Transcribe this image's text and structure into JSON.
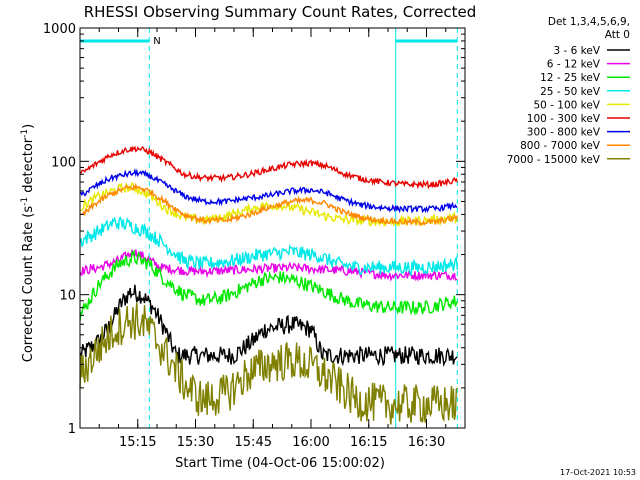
{
  "chart_data": {
    "type": "line",
    "title": "RHESSI Observing Summary Count Rates, Corrected",
    "xlabel": "Start Time (04-Oct-06 15:00:02)",
    "ylabel_prefix": "Corrected Count Rate (s",
    "ylabel_sup1": "-1",
    "ylabel_mid": " detector",
    "ylabel_sup2": "-1",
    "ylabel_suffix": ")",
    "y_scale": "log",
    "ylim": [
      1,
      1000
    ],
    "xlim_minutes": [
      0,
      100
    ],
    "x_ticks": [
      {
        "m": 15,
        "label": "15:15"
      },
      {
        "m": 30,
        "label": "15:30"
      },
      {
        "m": 45,
        "label": "15:45"
      },
      {
        "m": 60,
        "label": "16:00"
      },
      {
        "m": 75,
        "label": "16:15"
      },
      {
        "m": 90,
        "label": "16:30"
      }
    ],
    "y_ticks": [
      {
        "v": 1,
        "label": "1"
      },
      {
        "v": 10,
        "label": "10"
      },
      {
        "v": 100,
        "label": "100"
      },
      {
        "v": 1000,
        "label": "1000"
      }
    ],
    "legend": {
      "header": [
        "Det 1,3,4,5,6,9,",
        "Att 0"
      ],
      "position": "right"
    },
    "annotation_night": "N",
    "night_bars": [
      {
        "start": 0,
        "end": 18
      },
      {
        "start": 82,
        "end": 98
      }
    ],
    "boundary_lines_minutes": [
      0,
      18,
      82,
      98
    ],
    "timestamp": "17-Oct-2021 10:53",
    "series": [
      {
        "name": "3 - 6 keV",
        "color": "#000000",
        "points": [
          [
            0,
            3.5
          ],
          [
            5,
            4.5
          ],
          [
            8,
            6
          ],
          [
            10,
            8
          ],
          [
            13,
            10.5
          ],
          [
            16,
            10
          ],
          [
            19,
            8
          ],
          [
            22,
            5.5
          ],
          [
            25,
            3.5
          ],
          [
            30,
            3.5
          ],
          [
            40,
            3.5
          ],
          [
            45,
            4.5
          ],
          [
            48,
            5.5
          ],
          [
            55,
            6
          ],
          [
            60,
            5.5
          ],
          [
            63,
            3.5
          ],
          [
            70,
            3.5
          ],
          [
            80,
            3.5
          ],
          [
            90,
            3.5
          ],
          [
            98,
            3.5
          ]
        ]
      },
      {
        "name": "6 - 12 keV",
        "color": "#e800e8",
        "points": [
          [
            0,
            15
          ],
          [
            5,
            16
          ],
          [
            10,
            18
          ],
          [
            14,
            21
          ],
          [
            17,
            19
          ],
          [
            21,
            16
          ],
          [
            28,
            15
          ],
          [
            35,
            15
          ],
          [
            45,
            15.5
          ],
          [
            55,
            16
          ],
          [
            62,
            15.5
          ],
          [
            70,
            15
          ],
          [
            80,
            14
          ],
          [
            90,
            14
          ],
          [
            98,
            14
          ]
        ]
      },
      {
        "name": "12 - 25 keV",
        "color": "#00e800",
        "points": [
          [
            0,
            7
          ],
          [
            5,
            12
          ],
          [
            10,
            17
          ],
          [
            14,
            19
          ],
          [
            18,
            17
          ],
          [
            22,
            13
          ],
          [
            27,
            10
          ],
          [
            32,
            9
          ],
          [
            37,
            9.5
          ],
          [
            42,
            11
          ],
          [
            47,
            13
          ],
          [
            52,
            13.5
          ],
          [
            57,
            12.5
          ],
          [
            62,
            11
          ],
          [
            67,
            9.5
          ],
          [
            72,
            8.5
          ],
          [
            80,
            8
          ],
          [
            90,
            8
          ],
          [
            98,
            9
          ]
        ]
      },
      {
        "name": "25 - 50 keV",
        "color": "#00e8e8",
        "points": [
          [
            0,
            25
          ],
          [
            5,
            30
          ],
          [
            9,
            35
          ],
          [
            13,
            33
          ],
          [
            17,
            30
          ],
          [
            21,
            25
          ],
          [
            27,
            18
          ],
          [
            32,
            17
          ],
          [
            40,
            18
          ],
          [
            47,
            20
          ],
          [
            55,
            21
          ],
          [
            62,
            19.5
          ],
          [
            67,
            17
          ],
          [
            72,
            16
          ],
          [
            80,
            16
          ],
          [
            90,
            16
          ],
          [
            98,
            17
          ]
        ]
      },
      {
        "name": "50 - 100 keV",
        "color": "#e8e800",
        "points": [
          [
            0,
            45
          ],
          [
            5,
            55
          ],
          [
            10,
            62
          ],
          [
            14,
            64
          ],
          [
            18,
            56
          ],
          [
            22,
            45
          ],
          [
            27,
            38
          ],
          [
            32,
            36
          ],
          [
            37,
            38
          ],
          [
            42,
            42
          ],
          [
            47,
            46
          ],
          [
            52,
            47
          ],
          [
            57,
            44
          ],
          [
            62,
            40
          ],
          [
            67,
            37
          ],
          [
            72,
            36
          ],
          [
            80,
            35
          ],
          [
            90,
            36
          ],
          [
            98,
            38
          ]
        ]
      },
      {
        "name": "100 - 300 keV",
        "color": "#e80000",
        "points": [
          [
            0,
            80
          ],
          [
            4,
            95
          ],
          [
            8,
            112
          ],
          [
            12,
            122
          ],
          [
            15,
            125
          ],
          [
            18,
            118
          ],
          [
            22,
            100
          ],
          [
            27,
            80
          ],
          [
            32,
            75
          ],
          [
            38,
            75
          ],
          [
            44,
            80
          ],
          [
            50,
            88
          ],
          [
            55,
            95
          ],
          [
            60,
            97
          ],
          [
            64,
            92
          ],
          [
            68,
            82
          ],
          [
            73,
            74
          ],
          [
            78,
            70
          ],
          [
            85,
            67
          ],
          [
            92,
            67
          ],
          [
            98,
            72
          ]
        ]
      },
      {
        "name": "300 - 800 keV",
        "color": "#0000e8",
        "points": [
          [
            0,
            55
          ],
          [
            4,
            65
          ],
          [
            8,
            75
          ],
          [
            12,
            80
          ],
          [
            15,
            82
          ],
          [
            18,
            78
          ],
          [
            22,
            67
          ],
          [
            27,
            55
          ],
          [
            32,
            50
          ],
          [
            38,
            50
          ],
          [
            44,
            53
          ],
          [
            50,
            56
          ],
          [
            55,
            60
          ],
          [
            60,
            61
          ],
          [
            64,
            58
          ],
          [
            68,
            52
          ],
          [
            73,
            47
          ],
          [
            78,
            45
          ],
          [
            85,
            44
          ],
          [
            92,
            44
          ],
          [
            98,
            47
          ]
        ]
      },
      {
        "name": "800 - 7000 keV",
        "color": "#ff8800",
        "points": [
          [
            0,
            38
          ],
          [
            4,
            48
          ],
          [
            8,
            57
          ],
          [
            12,
            63
          ],
          [
            15,
            64
          ],
          [
            18,
            60
          ],
          [
            22,
            50
          ],
          [
            27,
            40
          ],
          [
            32,
            36
          ],
          [
            38,
            36
          ],
          [
            44,
            40
          ],
          [
            50,
            46
          ],
          [
            55,
            50
          ],
          [
            60,
            51
          ],
          [
            64,
            48
          ],
          [
            68,
            42
          ],
          [
            73,
            38
          ],
          [
            78,
            36
          ],
          [
            85,
            35
          ],
          [
            92,
            35
          ],
          [
            98,
            38
          ]
        ]
      },
      {
        "name": "7000 - 15000 keV",
        "color": "#808000",
        "points": [
          [
            0,
            2.5
          ],
          [
            5,
            4
          ],
          [
            9,
            5.5
          ],
          [
            13,
            6.5
          ],
          [
            17,
            6
          ],
          [
            20,
            4.5
          ],
          [
            24,
            3
          ],
          [
            28,
            2
          ],
          [
            32,
            1.6
          ],
          [
            38,
            1.8
          ],
          [
            44,
            2.6
          ],
          [
            50,
            3.1
          ],
          [
            56,
            3.2
          ],
          [
            61,
            2.8
          ],
          [
            66,
            2.2
          ],
          [
            72,
            1.6
          ],
          [
            80,
            1.5
          ],
          [
            88,
            1.5
          ],
          [
            98,
            1.5
          ]
        ]
      }
    ]
  }
}
